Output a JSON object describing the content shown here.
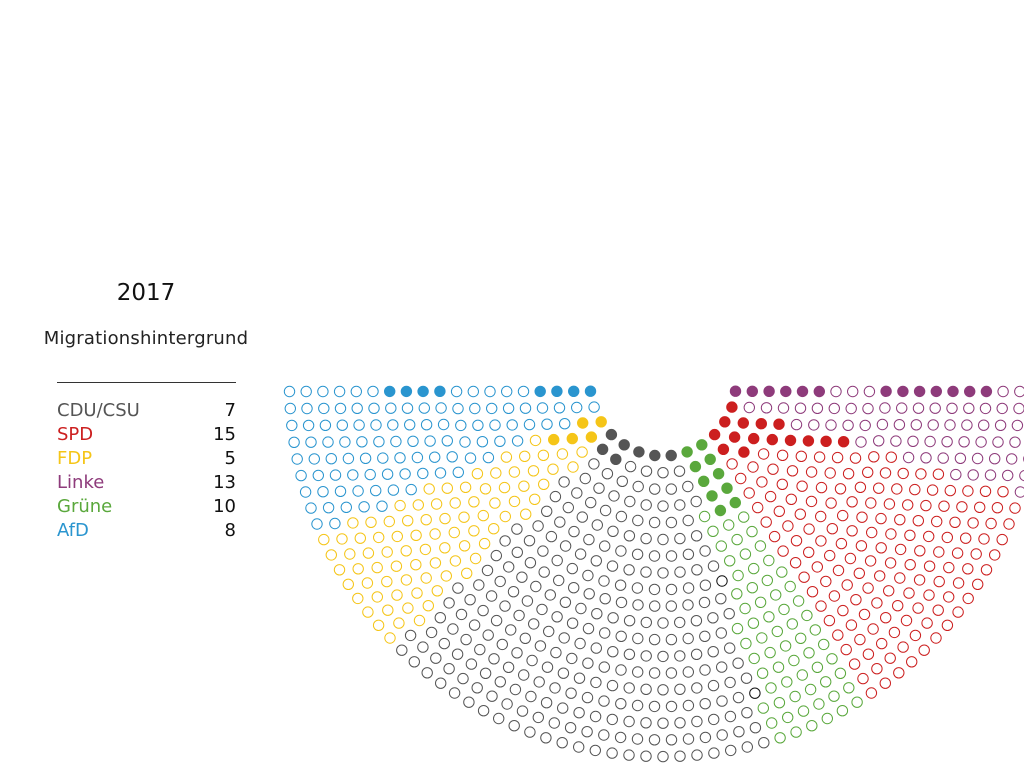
{
  "title": "2017",
  "subtitle": "Migrationshintergrund",
  "colors": {
    "CDU/CSU": "#555555",
    "SPD": "#cc1f1f",
    "FDP": "#f5c518",
    "Linke": "#8e3b7b",
    "Grüne": "#5aa83c",
    "AfD": "#2a95cf",
    "Fraktionslos": "#111111"
  },
  "legend": [
    {
      "party": "CDU/CSU",
      "count": "7"
    },
    {
      "party": "SPD",
      "count": "15"
    },
    {
      "party": "FDP",
      "count": "5"
    },
    {
      "party": "Linke",
      "count": "13"
    },
    {
      "party": "Grüne",
      "count": "10"
    },
    {
      "party": "AfD",
      "count": "8"
    }
  ],
  "chart_data": {
    "type": "parliament",
    "title": "2017",
    "subtitle": "Migrationshintergrund",
    "seat_order": [
      "AfD",
      "FDP",
      "CDU/CSU",
      "Fraktionslos",
      "Grüne",
      "SPD",
      "Linke"
    ],
    "seats": {
      "AfD": 94,
      "FDP": 80,
      "CDU/CSU": 245,
      "Fraktionslos": 2,
      "Grüne": 67,
      "SPD": 153,
      "Linke": 69
    },
    "highlighted": {
      "AfD": 8,
      "FDP": 5,
      "CDU/CSU": 7,
      "Fraktionslos": 0,
      "Grüne": 10,
      "SPD": 15,
      "Linke": 13
    },
    "highlight_style": "filled",
    "other_style": "outline"
  }
}
